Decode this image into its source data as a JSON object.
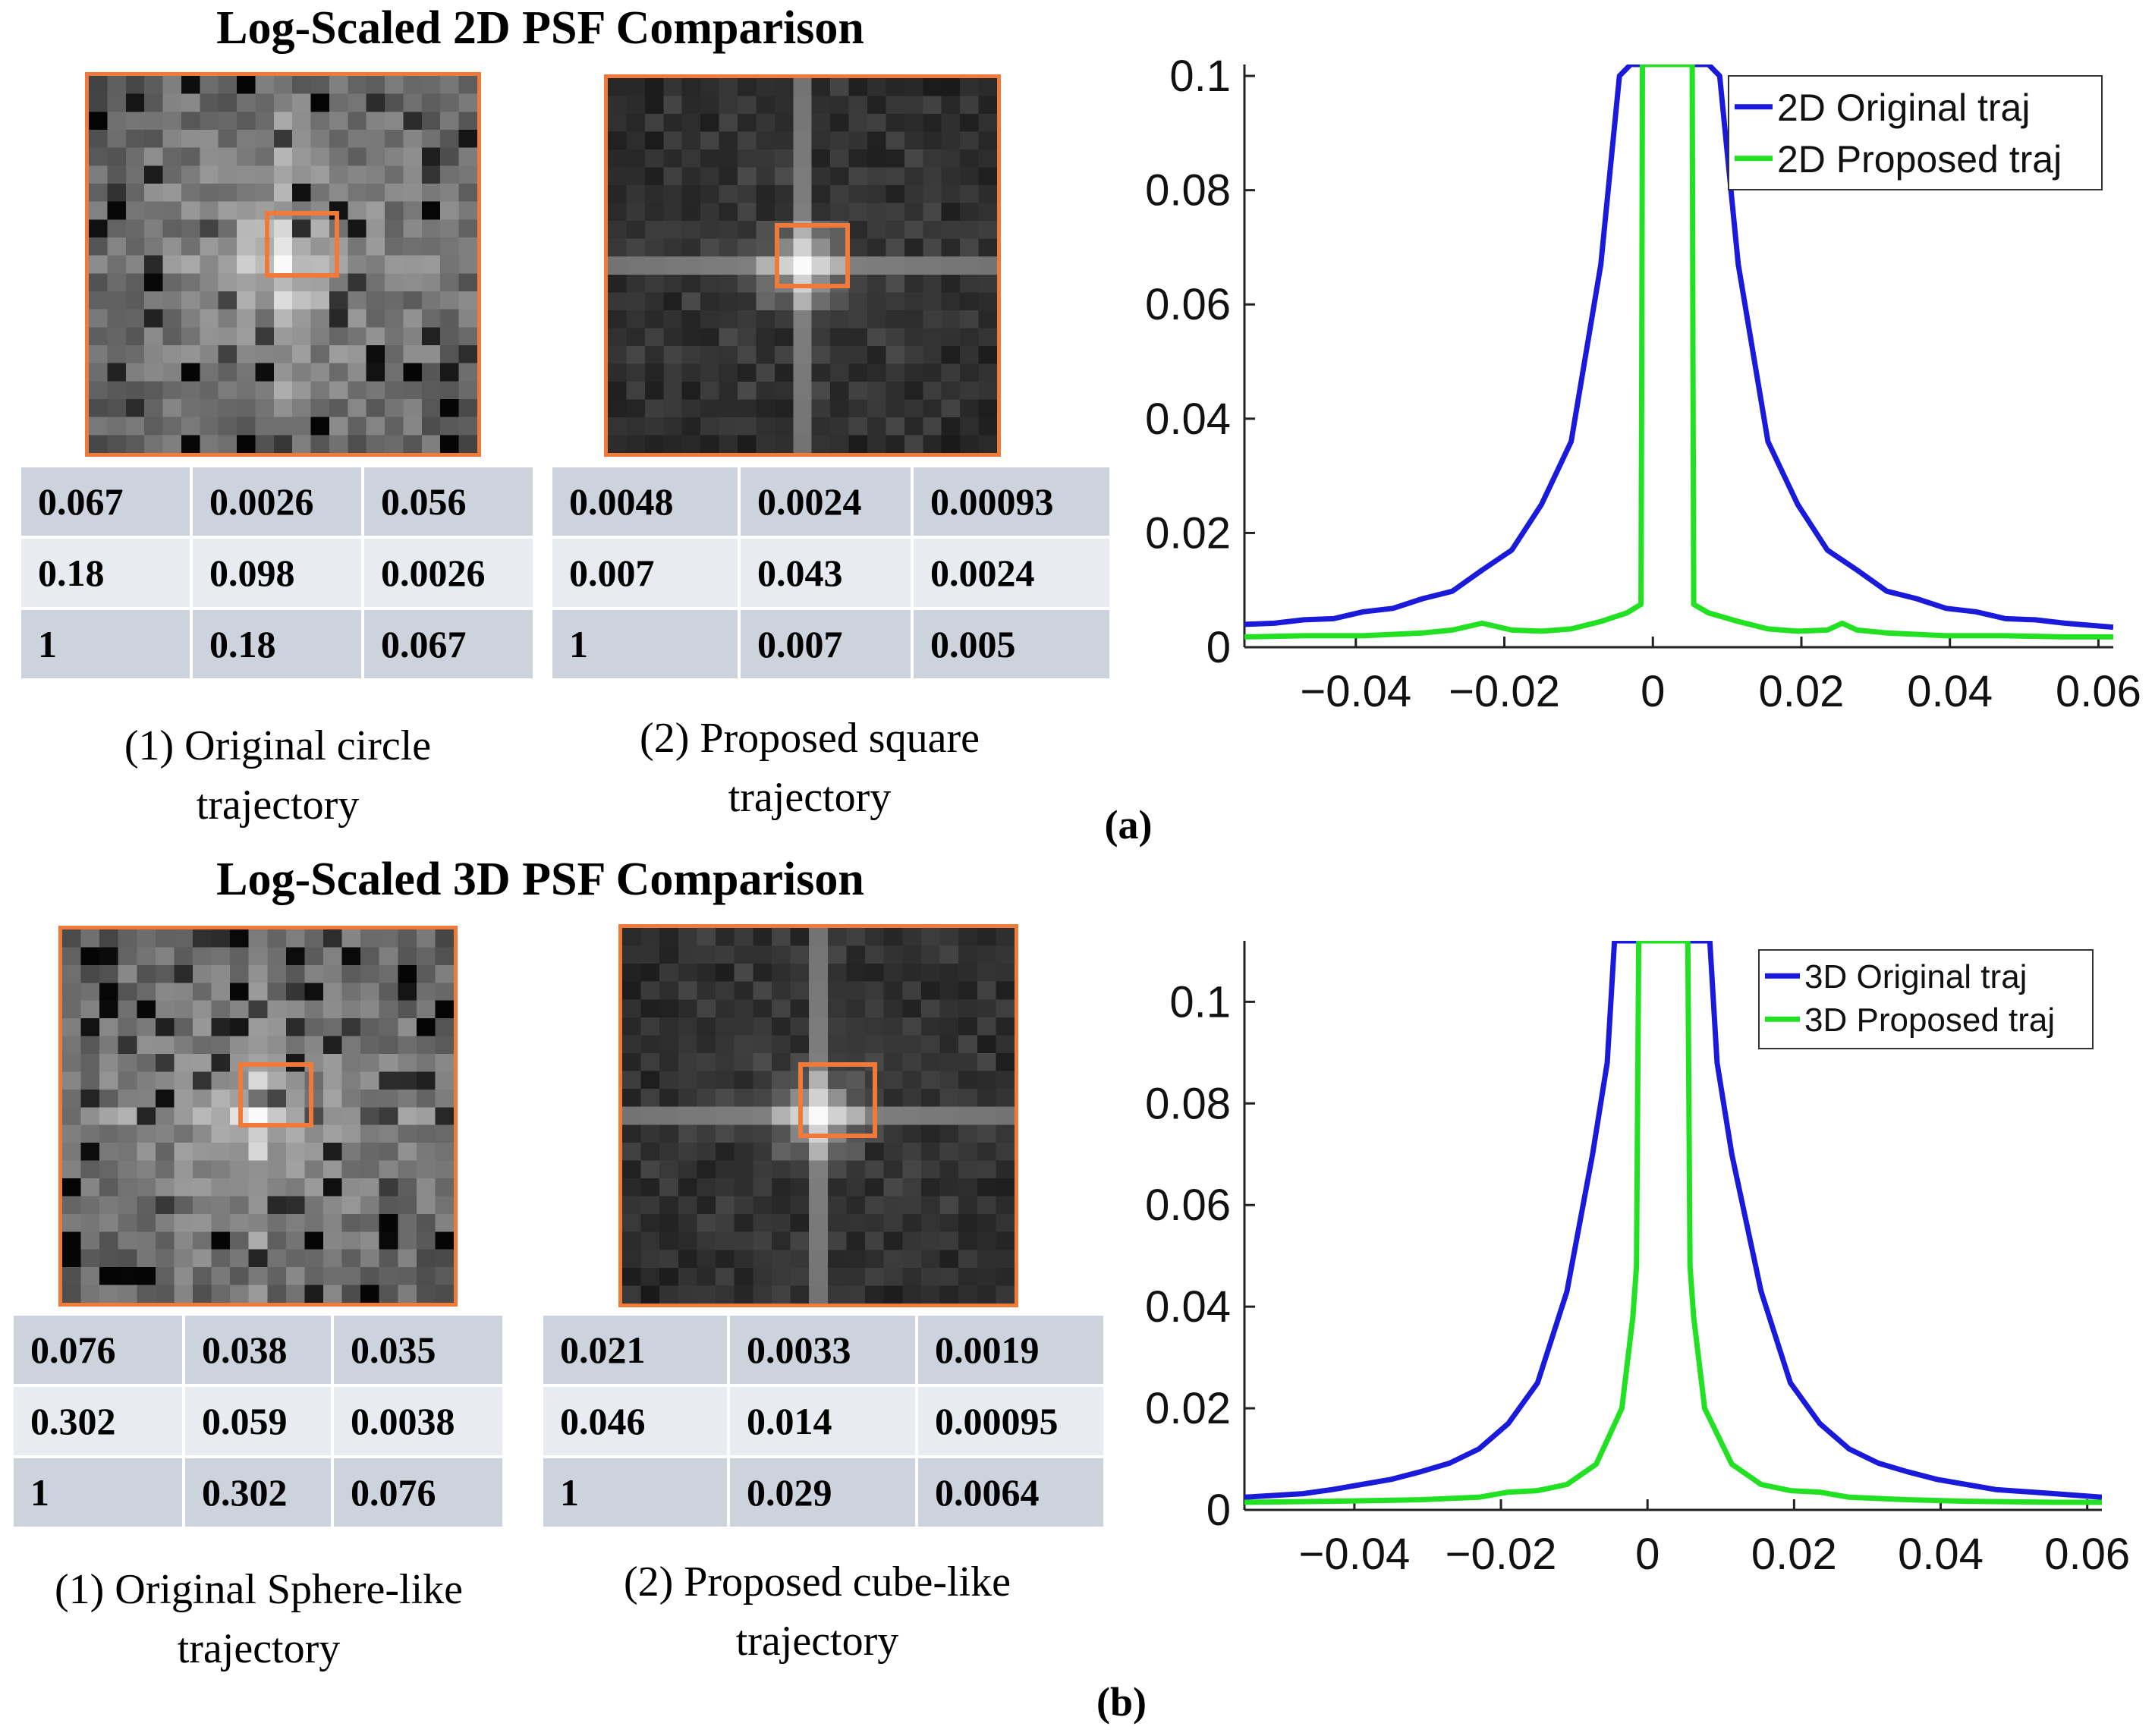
{
  "panel_a": {
    "title": "Log-Scaled 2D PSF Comparison",
    "label": "(a)",
    "left": {
      "caption_line1": "(1) Original circle",
      "caption_line2": "trajectory",
      "table": [
        [
          "0.067",
          "0.0026",
          "0.056"
        ],
        [
          "0.18",
          "0.098",
          "0.0026"
        ],
        [
          "1",
          "0.18",
          "0.067"
        ]
      ]
    },
    "right": {
      "caption_line1": "(2) Proposed square",
      "caption_line2": "trajectory",
      "table": [
        [
          "0.0048",
          "0.0024",
          "0.00093"
        ],
        [
          "0.007",
          "0.043",
          "0.0024"
        ],
        [
          "1",
          "0.007",
          "0.005"
        ]
      ]
    }
  },
  "panel_b": {
    "title": "Log-Scaled 3D PSF Comparison",
    "label": "(b)",
    "left": {
      "caption_line1": "(1) Original Sphere-like",
      "caption_line2": "trajectory",
      "table": [
        [
          "0.076",
          "0.038",
          "0.035"
        ],
        [
          "0.302",
          "0.059",
          "0.0038"
        ],
        [
          "1",
          "0.302",
          "0.076"
        ]
      ]
    },
    "right": {
      "caption_line1": "(2) Proposed cube-like",
      "caption_line2": "trajectory",
      "table": [
        [
          "0.021",
          "0.0033",
          "0.0019"
        ],
        [
          "0.046",
          "0.014",
          "0.00095"
        ],
        [
          "1",
          "0.029",
          "0.0064"
        ]
      ]
    }
  },
  "colors": {
    "blue": "#1a1adb",
    "green": "#22e022",
    "frame": "#f07a3a"
  },
  "chart_data": [
    {
      "type": "line",
      "title": "",
      "xlabel": "",
      "ylabel": "",
      "xlim": [
        -0.055,
        0.062
      ],
      "ylim": [
        0,
        0.102
      ],
      "xticks": [
        -0.04,
        -0.02,
        0,
        0.02,
        0.04,
        0.06
      ],
      "xtick_labels": [
        "−0.04",
        "−0.02",
        "0",
        "0.02",
        "0.04",
        "0.06"
      ],
      "yticks": [
        0,
        0.02,
        0.04,
        0.06,
        0.08,
        0.1
      ],
      "ytick_labels": [
        "0",
        "0.02",
        "0.04",
        "0.06",
        "0.08",
        "0.1"
      ],
      "legend_position": "top-right",
      "series": [
        {
          "name": "2D Original traj",
          "color": "#1a1adb",
          "x": [
            -0.055,
            -0.051,
            -0.047,
            -0.043,
            -0.039,
            -0.035,
            -0.031,
            -0.027,
            -0.023,
            -0.019,
            -0.015,
            -0.011,
            -0.007,
            -0.0045,
            -0.003,
            0.0075,
            0.009,
            0.0115,
            0.0155,
            0.0195,
            0.0235,
            0.0275,
            0.0315,
            0.0355,
            0.0395,
            0.0435,
            0.0475,
            0.0515,
            0.0555,
            0.062
          ],
          "y": [
            0.004,
            0.0042,
            0.0048,
            0.005,
            0.0062,
            0.0068,
            0.0085,
            0.0098,
            0.0135,
            0.017,
            0.025,
            0.036,
            0.067,
            0.1,
            0.102,
            0.102,
            0.1,
            0.067,
            0.036,
            0.025,
            0.017,
            0.0135,
            0.0098,
            0.0085,
            0.0068,
            0.0062,
            0.005,
            0.0048,
            0.0042,
            0.0035
          ]
        },
        {
          "name": "2D Proposed traj",
          "color": "#22e022",
          "x": [
            -0.055,
            -0.047,
            -0.039,
            -0.031,
            -0.027,
            -0.023,
            -0.019,
            -0.015,
            -0.011,
            -0.007,
            -0.0035,
            -0.0016,
            -0.0015,
            -0.0014,
            0.0053,
            0.0054,
            0.0055,
            0.0075,
            0.0115,
            0.0155,
            0.0195,
            0.0235,
            0.0255,
            0.0275,
            0.0315,
            0.0395,
            0.0475,
            0.0555,
            0.062
          ],
          "y": [
            0.0018,
            0.002,
            0.002,
            0.0025,
            0.003,
            0.0042,
            0.003,
            0.0028,
            0.0032,
            0.0045,
            0.006,
            0.0075,
            0.05,
            0.102,
            0.102,
            0.05,
            0.0075,
            0.006,
            0.0045,
            0.0032,
            0.0028,
            0.003,
            0.0042,
            0.003,
            0.0025,
            0.002,
            0.002,
            0.0018,
            0.0018
          ]
        }
      ]
    },
    {
      "type": "line",
      "title": "",
      "xlabel": "",
      "ylabel": "",
      "xlim": [
        -0.055,
        0.062
      ],
      "ylim": [
        0,
        0.112
      ],
      "xticks": [
        -0.04,
        -0.02,
        0,
        0.02,
        0.04,
        0.06
      ],
      "xtick_labels": [
        "−0.04",
        "−0.02",
        "0",
        "0.02",
        "0.04",
        "0.06"
      ],
      "yticks": [
        0,
        0.02,
        0.04,
        0.06,
        0.08,
        0.1
      ],
      "ytick_labels": [
        "0",
        "0.02",
        "0.04",
        "0.06",
        "0.08",
        "0.1"
      ],
      "legend_position": "top-right",
      "series": [
        {
          "name": "3D Original traj",
          "color": "#1a1adb",
          "x": [
            -0.055,
            -0.047,
            -0.043,
            -0.039,
            -0.035,
            -0.031,
            -0.027,
            -0.023,
            -0.019,
            -0.015,
            -0.011,
            -0.0075,
            -0.0055,
            -0.005,
            -0.0045,
            0.0085,
            0.009,
            0.0095,
            0.0115,
            0.0155,
            0.0195,
            0.0235,
            0.0275,
            0.0315,
            0.0355,
            0.0395,
            0.0435,
            0.0475,
            0.0555,
            0.062
          ],
          "y": [
            0.0025,
            0.0032,
            0.004,
            0.005,
            0.006,
            0.0075,
            0.0092,
            0.012,
            0.017,
            0.025,
            0.043,
            0.07,
            0.088,
            0.1,
            0.112,
            0.112,
            0.1,
            0.088,
            0.07,
            0.043,
            0.025,
            0.017,
            0.012,
            0.0092,
            0.0075,
            0.006,
            0.005,
            0.004,
            0.0032,
            0.0025
          ]
        },
        {
          "name": "3D Proposed traj",
          "color": "#22e022",
          "x": [
            -0.055,
            -0.043,
            -0.031,
            -0.023,
            -0.019,
            -0.015,
            -0.011,
            -0.007,
            -0.0035,
            -0.002,
            -0.0015,
            -0.0012,
            0.0055,
            0.0058,
            0.0063,
            0.0078,
            0.0115,
            0.0155,
            0.0195,
            0.0235,
            0.0275,
            0.0355,
            0.0435,
            0.0555,
            0.062
          ],
          "y": [
            0.0015,
            0.0017,
            0.002,
            0.0025,
            0.0035,
            0.0038,
            0.005,
            0.009,
            0.02,
            0.038,
            0.048,
            0.112,
            0.112,
            0.048,
            0.038,
            0.02,
            0.009,
            0.005,
            0.0038,
            0.0035,
            0.0025,
            0.002,
            0.0017,
            0.0015,
            0.0015
          ]
        }
      ]
    }
  ]
}
